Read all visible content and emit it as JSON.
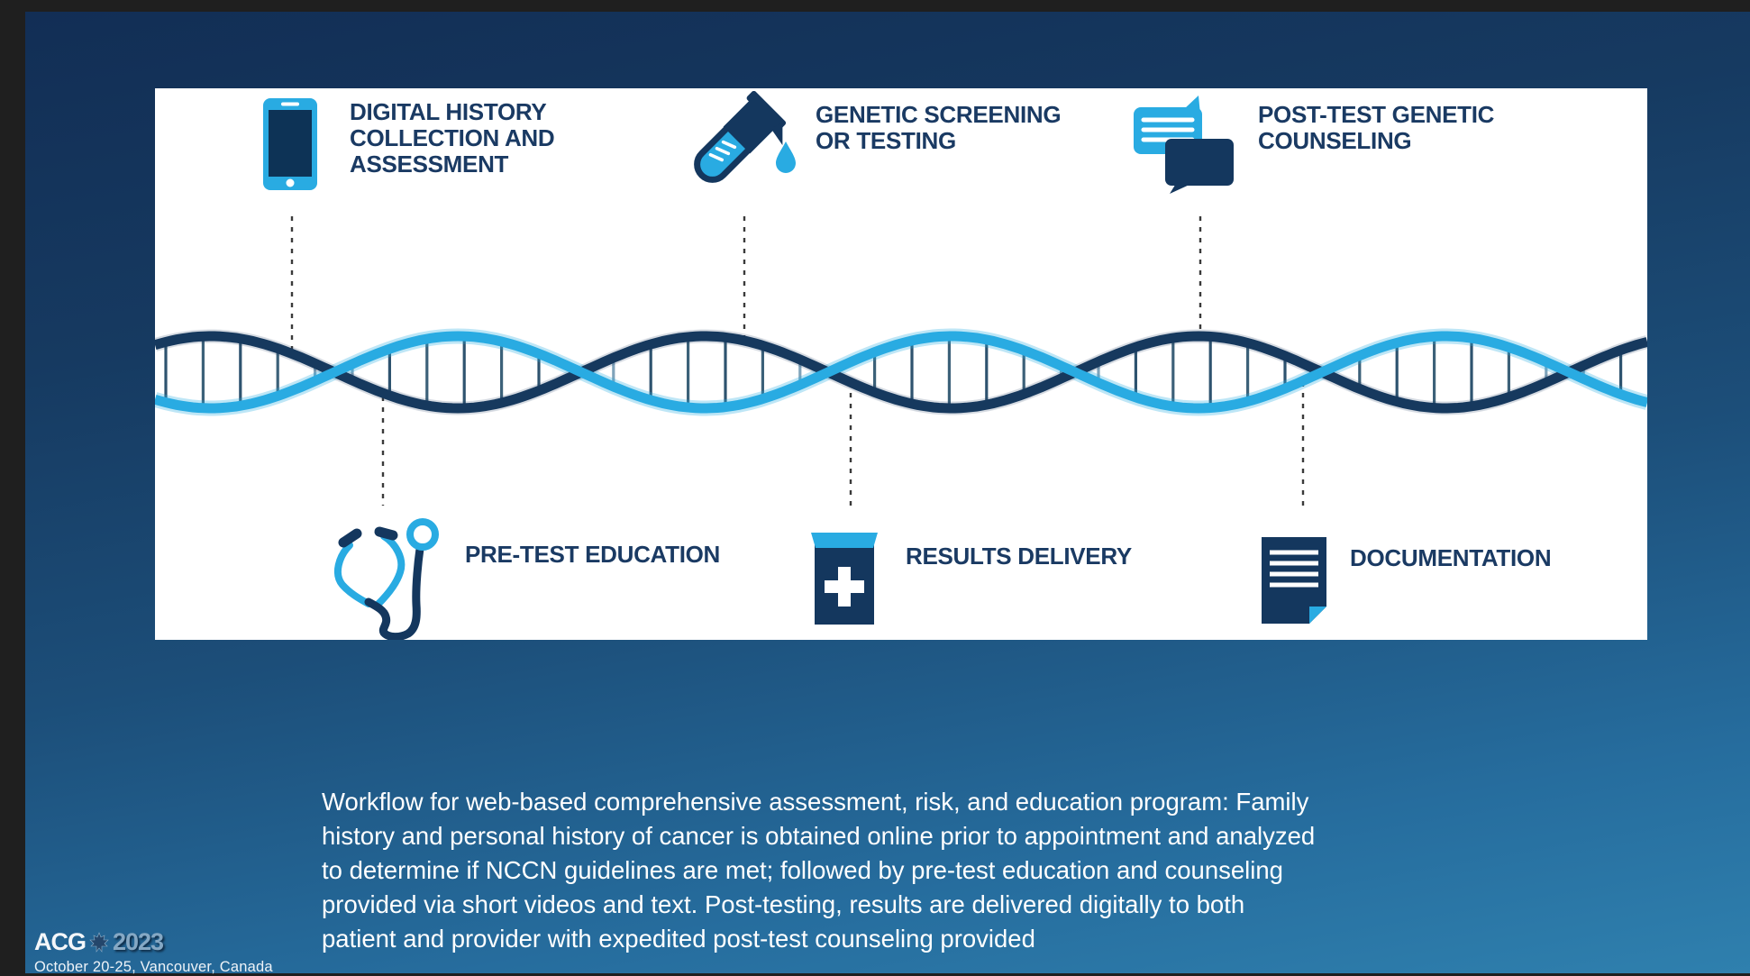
{
  "workflow": {
    "top_steps": [
      {
        "icon": "smartphone-icon",
        "line1": "DIGITAL HISTORY",
        "line2": "COLLECTION AND",
        "line3": "ASSESSMENT"
      },
      {
        "icon": "test-tube-icon",
        "line1": "GENETIC SCREENING",
        "line2": "OR TESTING"
      },
      {
        "icon": "chat-bubbles-icon",
        "line1": "POST-TEST GENETIC",
        "line2": "COUNSELING"
      }
    ],
    "bottom_steps": [
      {
        "icon": "stethoscope-icon",
        "label": "PRE-TEST EDUCATION"
      },
      {
        "icon": "medical-kit-icon",
        "label": "RESULTS DELIVERY"
      },
      {
        "icon": "document-icon",
        "label": "DOCUMENTATION"
      }
    ]
  },
  "caption": {
    "lines": [
      "Workflow for web-based comprehensive assessment, risk, and education program: Family",
      "history and personal history of cancer is obtained online prior to appointment and analyzed",
      "to determine if NCCN guidelines are met; followed by pre-test education and counseling",
      "provided via short videos and text. Post-testing, results are delivered digitally to both",
      "patient and provider with expedited post-test counseling provided"
    ]
  },
  "footer": {
    "conference": "ACG",
    "year": "2023",
    "location": "October 20-25, Vancouver, Canada"
  },
  "colors": {
    "accent_light_blue": "#29abe2",
    "accent_navy": "#14375e",
    "heading_text": "#1a3a63",
    "background_top": "#122e55",
    "background_bottom": "#2f80ae",
    "panel": "#ffffff"
  }
}
